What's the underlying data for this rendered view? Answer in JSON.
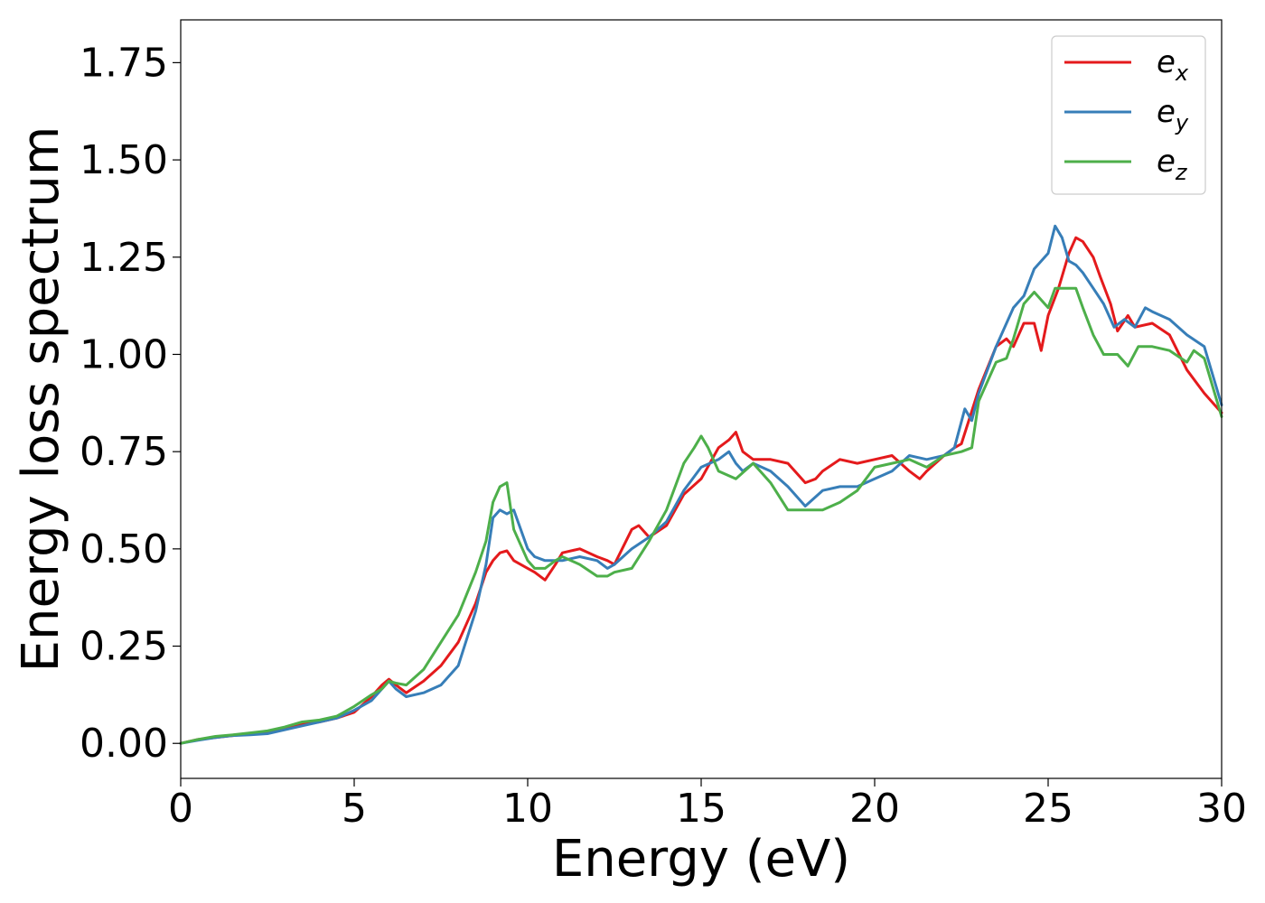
{
  "chart_data": {
    "type": "line",
    "title": "",
    "xlabel": "Energy (eV)",
    "ylabel": "Energy loss spectrum",
    "xlim": [
      0,
      30
    ],
    "ylim": [
      -0.09,
      1.86
    ],
    "xticks": [
      0,
      5,
      10,
      15,
      20,
      25,
      30
    ],
    "xtick_labels": [
      "0",
      "5",
      "10",
      "15",
      "20",
      "25",
      "30"
    ],
    "yticks": [
      0.0,
      0.25,
      0.5,
      0.75,
      1.0,
      1.25,
      1.5,
      1.75
    ],
    "ytick_labels": [
      "0.00",
      "0.25",
      "0.50",
      "0.75",
      "1.00",
      "1.25",
      "1.50",
      "1.75"
    ],
    "grid": false,
    "legend_position": "top-right",
    "series": [
      {
        "name": "e_x",
        "legend_base": "e",
        "legend_sub": "x",
        "color": "#e41a1c",
        "x": [
          0,
          0.5,
          1,
          1.5,
          2,
          2.5,
          3,
          3.5,
          4,
          4.5,
          5,
          5.5,
          5.8,
          6,
          6.2,
          6.5,
          7,
          7.5,
          8,
          8.5,
          8.8,
          9,
          9.2,
          9.4,
          9.6,
          10,
          10.2,
          10.5,
          10.8,
          11,
          11.5,
          12,
          12.3,
          12.5,
          13,
          13.2,
          13.5,
          14,
          14.5,
          15,
          15.5,
          15.8,
          16,
          16.2,
          16.5,
          17,
          17.5,
          18,
          18.3,
          18.5,
          19,
          19.5,
          20,
          20.5,
          21,
          21.3,
          21.5,
          22,
          22.3,
          22.5,
          23,
          23.5,
          23.8,
          24,
          24.3,
          24.6,
          24.8,
          25,
          25.3,
          25.6,
          25.8,
          26,
          26.3,
          26.5,
          26.8,
          27,
          27.3,
          27.5,
          28,
          28.5,
          29,
          29.5,
          30
        ],
        "y": [
          0.0,
          0.01,
          0.015,
          0.02,
          0.025,
          0.03,
          0.04,
          0.05,
          0.055,
          0.065,
          0.08,
          0.12,
          0.15,
          0.165,
          0.15,
          0.13,
          0.16,
          0.2,
          0.26,
          0.36,
          0.44,
          0.47,
          0.49,
          0.495,
          0.47,
          0.45,
          0.44,
          0.42,
          0.46,
          0.49,
          0.5,
          0.48,
          0.47,
          0.46,
          0.55,
          0.56,
          0.53,
          0.56,
          0.64,
          0.68,
          0.76,
          0.78,
          0.8,
          0.75,
          0.73,
          0.73,
          0.72,
          0.67,
          0.68,
          0.7,
          0.73,
          0.72,
          0.73,
          0.74,
          0.7,
          0.68,
          0.7,
          0.74,
          0.76,
          0.77,
          0.91,
          1.02,
          1.04,
          1.02,
          1.08,
          1.08,
          1.01,
          1.1,
          1.17,
          1.26,
          1.3,
          1.29,
          1.25,
          1.2,
          1.13,
          1.06,
          1.1,
          1.07,
          1.08,
          1.05,
          0.96,
          0.9,
          0.85
        ]
      },
      {
        "name": "e_y",
        "legend_base": "e",
        "legend_sub": "y",
        "color": "#377eb8",
        "x": [
          0,
          0.5,
          1,
          1.5,
          2,
          2.5,
          3,
          3.5,
          4,
          4.5,
          5,
          5.5,
          5.8,
          6,
          6.2,
          6.5,
          7,
          7.5,
          8,
          8.5,
          8.8,
          9,
          9.2,
          9.4,
          9.6,
          10,
          10.2,
          10.5,
          10.8,
          11,
          11.5,
          12,
          12.3,
          12.5,
          13,
          13.5,
          14,
          14.5,
          15,
          15.5,
          15.8,
          16,
          16.2,
          16.5,
          17,
          17.5,
          18,
          18.5,
          19,
          19.5,
          20,
          20.5,
          21,
          21.5,
          22,
          22.3,
          22.6,
          22.8,
          23,
          23.5,
          23.8,
          24,
          24.3,
          24.6,
          25,
          25.2,
          25.4,
          25.6,
          25.8,
          26,
          26.3,
          26.6,
          26.9,
          27.2,
          27.5,
          27.8,
          28,
          28.5,
          29,
          29.5,
          30
        ],
        "y": [
          0.0,
          0.008,
          0.015,
          0.02,
          0.022,
          0.025,
          0.035,
          0.045,
          0.055,
          0.065,
          0.085,
          0.11,
          0.14,
          0.16,
          0.14,
          0.12,
          0.13,
          0.15,
          0.2,
          0.34,
          0.46,
          0.58,
          0.6,
          0.59,
          0.6,
          0.5,
          0.48,
          0.47,
          0.47,
          0.47,
          0.48,
          0.47,
          0.45,
          0.46,
          0.5,
          0.53,
          0.57,
          0.65,
          0.71,
          0.73,
          0.75,
          0.72,
          0.7,
          0.72,
          0.7,
          0.66,
          0.61,
          0.65,
          0.66,
          0.66,
          0.68,
          0.7,
          0.74,
          0.73,
          0.74,
          0.76,
          0.86,
          0.83,
          0.9,
          1.02,
          1.08,
          1.12,
          1.15,
          1.22,
          1.26,
          1.33,
          1.3,
          1.24,
          1.23,
          1.21,
          1.17,
          1.13,
          1.07,
          1.09,
          1.07,
          1.12,
          1.11,
          1.09,
          1.05,
          1.02,
          0.87
        ]
      },
      {
        "name": "e_z",
        "legend_base": "e",
        "legend_sub": "z",
        "color": "#4daf4a",
        "x": [
          0,
          0.5,
          1,
          1.5,
          2,
          2.5,
          3,
          3.5,
          4,
          4.5,
          5,
          5.5,
          5.8,
          6,
          6.2,
          6.5,
          7,
          7.5,
          8,
          8.5,
          8.8,
          9,
          9.2,
          9.4,
          9.6,
          10,
          10.2,
          10.5,
          10.8,
          11,
          11.5,
          12,
          12.3,
          12.5,
          13,
          13.5,
          14,
          14.5,
          14.8,
          15,
          15.2,
          15.5,
          16,
          16.5,
          17,
          17.5,
          18,
          18.5,
          19,
          19.5,
          20,
          20.5,
          21,
          21.5,
          22,
          22.5,
          22.8,
          23,
          23.5,
          23.8,
          24,
          24.3,
          24.6,
          25,
          25.2,
          25.5,
          25.8,
          26,
          26.3,
          26.6,
          27,
          27.3,
          27.6,
          28,
          28.5,
          29,
          29.2,
          29.5,
          30
        ],
        "y": [
          0.0,
          0.01,
          0.018,
          0.022,
          0.027,
          0.032,
          0.042,
          0.055,
          0.06,
          0.07,
          0.095,
          0.125,
          0.14,
          0.16,
          0.155,
          0.15,
          0.19,
          0.26,
          0.33,
          0.44,
          0.52,
          0.62,
          0.66,
          0.67,
          0.55,
          0.47,
          0.45,
          0.45,
          0.47,
          0.48,
          0.46,
          0.43,
          0.43,
          0.44,
          0.45,
          0.52,
          0.6,
          0.72,
          0.76,
          0.79,
          0.76,
          0.7,
          0.68,
          0.72,
          0.67,
          0.6,
          0.6,
          0.6,
          0.62,
          0.65,
          0.71,
          0.72,
          0.73,
          0.71,
          0.74,
          0.75,
          0.76,
          0.88,
          0.98,
          0.99,
          1.04,
          1.13,
          1.16,
          1.12,
          1.17,
          1.17,
          1.17,
          1.12,
          1.05,
          1.0,
          1.0,
          0.97,
          1.02,
          1.02,
          1.01,
          0.98,
          1.01,
          0.99,
          0.84
        ]
      }
    ]
  }
}
